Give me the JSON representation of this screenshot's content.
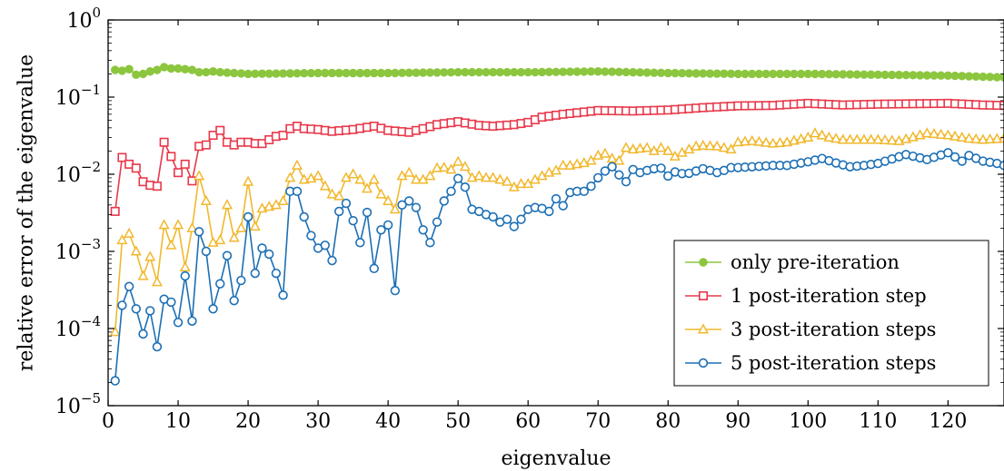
{
  "chart_data": {
    "type": "line",
    "xlabel": "eigenvalue",
    "ylabel": "relative error of the eigenvalue",
    "xlim": [
      0,
      128
    ],
    "ylim": [
      1e-05,
      1
    ],
    "yscale": "log",
    "xticks": [
      0,
      10,
      20,
      30,
      40,
      50,
      60,
      70,
      80,
      90,
      100,
      110,
      120
    ],
    "yticks": [
      {
        "value": 1e-05,
        "mantissa": "10",
        "exp": "−5"
      },
      {
        "value": 0.0001,
        "mantissa": "10",
        "exp": "−4"
      },
      {
        "value": 0.001,
        "mantissa": "10",
        "exp": "−3"
      },
      {
        "value": 0.01,
        "mantissa": "10",
        "exp": "−2"
      },
      {
        "value": 0.1,
        "mantissa": "10",
        "exp": "−1"
      },
      {
        "value": 1,
        "mantissa": "10",
        "exp": "0"
      }
    ],
    "grid": false,
    "legend_position": "bottom-right",
    "series": [
      {
        "name": "only pre-iteration",
        "color": "#8cc63f",
        "marker": "circle-filled",
        "knots": [
          [
            1,
            0.225
          ],
          [
            2,
            0.22
          ],
          [
            3,
            0.23
          ],
          [
            4,
            0.195
          ],
          [
            5,
            0.2
          ],
          [
            6,
            0.215
          ],
          [
            7,
            0.225
          ],
          [
            8,
            0.245
          ],
          [
            9,
            0.235
          ],
          [
            10,
            0.235
          ],
          [
            11,
            0.23
          ],
          [
            12,
            0.225
          ],
          [
            13,
            0.21
          ],
          [
            14,
            0.21
          ],
          [
            15,
            0.215
          ],
          [
            16,
            0.21
          ],
          [
            20,
            0.2
          ],
          [
            30,
            0.205
          ],
          [
            40,
            0.205
          ],
          [
            50,
            0.21
          ],
          [
            60,
            0.21
          ],
          [
            70,
            0.215
          ],
          [
            80,
            0.205
          ],
          [
            90,
            0.2
          ],
          [
            100,
            0.2
          ],
          [
            110,
            0.195
          ],
          [
            120,
            0.19
          ],
          [
            128,
            0.18
          ]
        ],
        "step": 1
      },
      {
        "name": "1 post-iteration step",
        "color": "#e8384a",
        "marker": "square",
        "knots": [
          [
            1,
            0.0033
          ],
          [
            2,
            0.0165
          ],
          [
            3,
            0.0135
          ],
          [
            4,
            0.012
          ],
          [
            5,
            0.008
          ],
          [
            6,
            0.0072
          ],
          [
            7,
            0.007
          ],
          [
            8,
            0.026
          ],
          [
            9,
            0.017
          ],
          [
            10,
            0.0105
          ],
          [
            11,
            0.0135
          ],
          [
            12,
            0.0082
          ],
          [
            13,
            0.023
          ],
          [
            14,
            0.024
          ],
          [
            15,
            0.032
          ],
          [
            16,
            0.037
          ],
          [
            17,
            0.026
          ],
          [
            18,
            0.024
          ],
          [
            19,
            0.026
          ],
          [
            20,
            0.026
          ],
          [
            21,
            0.025
          ],
          [
            22,
            0.025
          ],
          [
            23,
            0.028
          ],
          [
            24,
            0.031
          ],
          [
            25,
            0.032
          ],
          [
            26,
            0.039
          ],
          [
            27,
            0.042
          ],
          [
            28,
            0.039
          ],
          [
            30,
            0.038
          ],
          [
            32,
            0.036
          ],
          [
            35,
            0.038
          ],
          [
            38,
            0.042
          ],
          [
            40,
            0.037
          ],
          [
            43,
            0.035
          ],
          [
            45,
            0.039
          ],
          [
            47,
            0.044
          ],
          [
            50,
            0.048
          ],
          [
            53,
            0.043
          ],
          [
            55,
            0.042
          ],
          [
            58,
            0.044
          ],
          [
            60,
            0.047
          ],
          [
            62,
            0.055
          ],
          [
            65,
            0.06
          ],
          [
            70,
            0.067
          ],
          [
            75,
            0.066
          ],
          [
            80,
            0.068
          ],
          [
            85,
            0.073
          ],
          [
            90,
            0.077
          ],
          [
            95,
            0.078
          ],
          [
            100,
            0.083
          ],
          [
            105,
            0.079
          ],
          [
            110,
            0.081
          ],
          [
            115,
            0.082
          ],
          [
            120,
            0.083
          ],
          [
            125,
            0.079
          ],
          [
            128,
            0.078
          ]
        ],
        "step": 1
      },
      {
        "name": "3 post-iteration steps",
        "color": "#f1b82d",
        "marker": "triangle",
        "knots": [
          [
            1,
            9e-05
          ],
          [
            2,
            0.0014
          ],
          [
            3,
            0.0017
          ],
          [
            4,
            0.001
          ],
          [
            5,
            0.00048
          ],
          [
            6,
            0.00085
          ],
          [
            7,
            0.0004
          ],
          [
            8,
            0.0022
          ],
          [
            9,
            0.0012
          ],
          [
            10,
            0.0022
          ],
          [
            11,
            0.00062
          ],
          [
            12,
            0.002
          ],
          [
            13,
            0.0095
          ],
          [
            14,
            0.0045
          ],
          [
            15,
            0.0013
          ],
          [
            16,
            0.0014
          ],
          [
            17,
            0.004
          ],
          [
            18,
            0.0015
          ],
          [
            19,
            0.002
          ],
          [
            20,
            0.008
          ],
          [
            21,
            0.0021
          ],
          [
            22,
            0.0036
          ],
          [
            23,
            0.0038
          ],
          [
            24,
            0.004
          ],
          [
            25,
            0.0045
          ],
          [
            26,
            0.009
          ],
          [
            27,
            0.013
          ],
          [
            28,
            0.0085
          ],
          [
            29,
            0.0088
          ],
          [
            30,
            0.0095
          ],
          [
            31,
            0.007
          ],
          [
            32,
            0.0055
          ],
          [
            33,
            0.0052
          ],
          [
            34,
            0.009
          ],
          [
            35,
            0.01
          ],
          [
            36,
            0.0085
          ],
          [
            37,
            0.0065
          ],
          [
            38,
            0.0085
          ],
          [
            39,
            0.0055
          ],
          [
            40,
            0.0045
          ],
          [
            41,
            0.0035
          ],
          [
            42,
            0.0095
          ],
          [
            43,
            0.0105
          ],
          [
            44,
            0.0085
          ],
          [
            45,
            0.0085
          ],
          [
            46,
            0.0095
          ],
          [
            47,
            0.012
          ],
          [
            48,
            0.0122
          ],
          [
            49,
            0.0115
          ],
          [
            50,
            0.0145
          ],
          [
            51,
            0.0125
          ],
          [
            52,
            0.009
          ],
          [
            53,
            0.0095
          ],
          [
            54,
            0.009
          ],
          [
            55,
            0.009
          ],
          [
            56,
            0.0085
          ],
          [
            57,
            0.008
          ],
          [
            58,
            0.0068
          ],
          [
            59,
            0.0075
          ],
          [
            60,
            0.0075
          ],
          [
            61,
            0.0085
          ],
          [
            62,
            0.0095
          ],
          [
            63,
            0.0105
          ],
          [
            64,
            0.0112
          ],
          [
            65,
            0.013
          ],
          [
            66,
            0.013
          ],
          [
            67,
            0.0135
          ],
          [
            68,
            0.014
          ],
          [
            69,
            0.015
          ],
          [
            70,
            0.0175
          ],
          [
            71,
            0.0185
          ],
          [
            72,
            0.016
          ],
          [
            73,
            0.015
          ],
          [
            74,
            0.022
          ],
          [
            75,
            0.021
          ],
          [
            76,
            0.0215
          ],
          [
            77,
            0.022
          ],
          [
            78,
            0.02
          ],
          [
            79,
            0.022
          ],
          [
            80,
            0.02
          ],
          [
            81,
            0.017
          ],
          [
            82,
            0.019
          ],
          [
            83,
            0.021
          ],
          [
            84,
            0.023
          ],
          [
            85,
            0.0235
          ],
          [
            87,
            0.023
          ],
          [
            89,
            0.021
          ],
          [
            90,
            0.026
          ],
          [
            92,
            0.027
          ],
          [
            95,
            0.025
          ],
          [
            97,
            0.026
          ],
          [
            100,
            0.03
          ],
          [
            101,
            0.034
          ],
          [
            103,
            0.03
          ],
          [
            105,
            0.028
          ],
          [
            110,
            0.028
          ],
          [
            113,
            0.027
          ],
          [
            117,
            0.034
          ],
          [
            120,
            0.032
          ],
          [
            123,
            0.029
          ],
          [
            125,
            0.028
          ],
          [
            128,
            0.029
          ]
        ],
        "step": 1
      },
      {
        "name": "5 post-iteration steps",
        "color": "#1b6fb5",
        "marker": "circle-open",
        "knots": [
          [
            1,
            2.1e-05
          ],
          [
            2,
            0.0002
          ],
          [
            3,
            0.00035
          ],
          [
            4,
            0.00018
          ],
          [
            5,
            8.5e-05
          ],
          [
            6,
            0.00017
          ],
          [
            7,
            5.8e-05
          ],
          [
            8,
            0.00024
          ],
          [
            9,
            0.00022
          ],
          [
            10,
            0.00012
          ],
          [
            11,
            0.00048
          ],
          [
            12,
            0.000125
          ],
          [
            13,
            0.0018
          ],
          [
            14,
            0.001
          ],
          [
            15,
            0.00018
          ],
          [
            16,
            0.00038
          ],
          [
            17,
            0.00088
          ],
          [
            18,
            0.00023
          ],
          [
            19,
            0.00042
          ],
          [
            20,
            0.0028
          ],
          [
            21,
            0.00052
          ],
          [
            22,
            0.0011
          ],
          [
            23,
            0.00092
          ],
          [
            24,
            0.00052
          ],
          [
            25,
            0.00027
          ],
          [
            26,
            0.006
          ],
          [
            27,
            0.006
          ],
          [
            28,
            0.0028
          ],
          [
            29,
            0.0016
          ],
          [
            30,
            0.0011
          ],
          [
            31,
            0.0012
          ],
          [
            32,
            0.00076
          ],
          [
            33,
            0.0033
          ],
          [
            34,
            0.0042
          ],
          [
            35,
            0.0025
          ],
          [
            36,
            0.0013
          ],
          [
            37,
            0.0032
          ],
          [
            38,
            0.0006
          ],
          [
            39,
            0.0019
          ],
          [
            40,
            0.0022
          ],
          [
            41,
            0.00031
          ],
          [
            42,
            0.004
          ],
          [
            43,
            0.0045
          ],
          [
            44,
            0.0037
          ],
          [
            45,
            0.0019
          ],
          [
            46,
            0.0013
          ],
          [
            47,
            0.0024
          ],
          [
            48,
            0.0045
          ],
          [
            49,
            0.006
          ],
          [
            50,
            0.0088
          ],
          [
            51,
            0.0068
          ],
          [
            52,
            0.0035
          ],
          [
            53,
            0.0033
          ],
          [
            54,
            0.003
          ],
          [
            55,
            0.0028
          ],
          [
            56,
            0.0024
          ],
          [
            57,
            0.0026
          ],
          [
            58,
            0.0021
          ],
          [
            59,
            0.0026
          ],
          [
            60,
            0.0035
          ],
          [
            61,
            0.0037
          ],
          [
            62,
            0.0036
          ],
          [
            63,
            0.0033
          ],
          [
            64,
            0.0048
          ],
          [
            65,
            0.0039
          ],
          [
            66,
            0.0058
          ],
          [
            67,
            0.006
          ],
          [
            68,
            0.006
          ],
          [
            69,
            0.007
          ],
          [
            70,
            0.009
          ],
          [
            71,
            0.011
          ],
          [
            72,
            0.0125
          ],
          [
            73,
            0.0098
          ],
          [
            74,
            0.008
          ],
          [
            75,
            0.0115
          ],
          [
            76,
            0.0105
          ],
          [
            77,
            0.0112
          ],
          [
            78,
            0.0118
          ],
          [
            79,
            0.012
          ],
          [
            80,
            0.0095
          ],
          [
            81,
            0.0107
          ],
          [
            82,
            0.0102
          ],
          [
            83,
            0.0103
          ],
          [
            84,
            0.011
          ],
          [
            85,
            0.0118
          ],
          [
            86,
            0.0112
          ],
          [
            87,
            0.0105
          ],
          [
            88,
            0.0112
          ],
          [
            89,
            0.0122
          ],
          [
            90,
            0.0122
          ],
          [
            92,
            0.0125
          ],
          [
            95,
            0.013
          ],
          [
            97,
            0.013
          ],
          [
            100,
            0.0145
          ],
          [
            102,
            0.016
          ],
          [
            104,
            0.014
          ],
          [
            106,
            0.0125
          ],
          [
            108,
            0.013
          ],
          [
            110,
            0.0138
          ],
          [
            114,
            0.018
          ],
          [
            117,
            0.0155
          ],
          [
            120,
            0.019
          ],
          [
            122,
            0.0148
          ],
          [
            123,
            0.0175
          ],
          [
            125,
            0.0148
          ],
          [
            127,
            0.0138
          ],
          [
            128,
            0.013
          ]
        ],
        "step": 1
      }
    ]
  }
}
